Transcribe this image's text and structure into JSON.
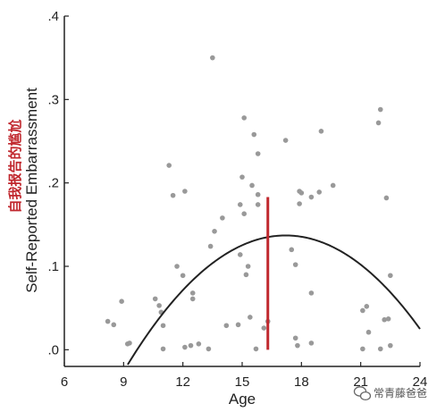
{
  "chart_data": {
    "type": "scatter",
    "xlabel": "Age",
    "ylabel": "Self-Reported Embarrassment",
    "ylabel_cn": "自我报告的尴尬",
    "xlim": [
      6,
      24
    ],
    "ylim": [
      -0.02,
      0.4
    ],
    "x_ticks": [
      6,
      9,
      12,
      15,
      18,
      21,
      24
    ],
    "y_ticks": [
      0.0,
      0.1,
      0.2,
      0.3,
      0.4
    ],
    "y_tick_labels": [
      ".0",
      ".1",
      ".2",
      ".3",
      ".4"
    ],
    "grid": false,
    "colors": {
      "points": "#999999",
      "curve": "#222222",
      "marker_line": "#c0272d"
    },
    "points": [
      {
        "x": 8.2,
        "y": 0.034
      },
      {
        "x": 8.5,
        "y": 0.03
      },
      {
        "x": 8.9,
        "y": 0.058
      },
      {
        "x": 9.2,
        "y": 0.007
      },
      {
        "x": 9.3,
        "y": 0.008
      },
      {
        "x": 10.6,
        "y": 0.061
      },
      {
        "x": 10.8,
        "y": 0.053
      },
      {
        "x": 10.9,
        "y": 0.045
      },
      {
        "x": 11.0,
        "y": 0.029
      },
      {
        "x": 11.0,
        "y": 0.001
      },
      {
        "x": 11.3,
        "y": 0.221
      },
      {
        "x": 11.5,
        "y": 0.185
      },
      {
        "x": 11.7,
        "y": 0.1
      },
      {
        "x": 12.0,
        "y": 0.089
      },
      {
        "x": 12.1,
        "y": 0.19
      },
      {
        "x": 12.1,
        "y": 0.003
      },
      {
        "x": 12.4,
        "y": 0.005
      },
      {
        "x": 12.5,
        "y": 0.068
      },
      {
        "x": 12.5,
        "y": 0.061
      },
      {
        "x": 12.8,
        "y": 0.007
      },
      {
        "x": 13.3,
        "y": 0.001
      },
      {
        "x": 13.4,
        "y": 0.124
      },
      {
        "x": 13.5,
        "y": 0.35
      },
      {
        "x": 13.6,
        "y": 0.142
      },
      {
        "x": 14.0,
        "y": 0.158
      },
      {
        "x": 14.2,
        "y": 0.029
      },
      {
        "x": 14.8,
        "y": 0.03
      },
      {
        "x": 14.9,
        "y": 0.174
      },
      {
        "x": 14.9,
        "y": 0.114
      },
      {
        "x": 15.0,
        "y": 0.207
      },
      {
        "x": 15.1,
        "y": 0.278
      },
      {
        "x": 15.1,
        "y": 0.163
      },
      {
        "x": 15.2,
        "y": 0.09
      },
      {
        "x": 15.3,
        "y": 0.1
      },
      {
        "x": 15.4,
        "y": 0.039
      },
      {
        "x": 15.5,
        "y": 0.197
      },
      {
        "x": 15.6,
        "y": 0.258
      },
      {
        "x": 15.7,
        "y": 0.001
      },
      {
        "x": 15.8,
        "y": 0.235
      },
      {
        "x": 15.8,
        "y": 0.186
      },
      {
        "x": 15.8,
        "y": 0.174
      },
      {
        "x": 16.1,
        "y": 0.026
      },
      {
        "x": 16.3,
        "y": 0.034
      },
      {
        "x": 17.2,
        "y": 0.251
      },
      {
        "x": 17.5,
        "y": 0.12
      },
      {
        "x": 17.7,
        "y": 0.102
      },
      {
        "x": 17.7,
        "y": 0.014
      },
      {
        "x": 17.8,
        "y": 0.005
      },
      {
        "x": 17.9,
        "y": 0.19
      },
      {
        "x": 17.9,
        "y": 0.175
      },
      {
        "x": 18.0,
        "y": 0.188
      },
      {
        "x": 18.5,
        "y": 0.183
      },
      {
        "x": 18.5,
        "y": 0.068
      },
      {
        "x": 18.5,
        "y": 0.008
      },
      {
        "x": 18.9,
        "y": 0.189
      },
      {
        "x": 19.0,
        "y": 0.262
      },
      {
        "x": 19.6,
        "y": 0.197
      },
      {
        "x": 21.1,
        "y": 0.047
      },
      {
        "x": 21.1,
        "y": 0.001
      },
      {
        "x": 21.3,
        "y": 0.052
      },
      {
        "x": 21.4,
        "y": 0.021
      },
      {
        "x": 21.9,
        "y": 0.272
      },
      {
        "x": 22.0,
        "y": 0.288
      },
      {
        "x": 22.0,
        "y": 0.001
      },
      {
        "x": 22.2,
        "y": 0.036
      },
      {
        "x": 22.3,
        "y": 0.182
      },
      {
        "x": 22.4,
        "y": 0.037
      },
      {
        "x": 22.5,
        "y": 0.005
      },
      {
        "x": 22.5,
        "y": 0.089
      }
    ],
    "fit_curve": {
      "type": "quadratic",
      "vertex_x": 17.2,
      "vertex_y": 0.137,
      "a": -0.002424,
      "x_range": [
        6.8,
        24.0
      ]
    },
    "marker_line": {
      "x": 16.3,
      "y_from": 0.0,
      "y_to": 0.183
    }
  },
  "watermark": {
    "text": "常青藤爸爸",
    "icon": "wechat-icon"
  }
}
